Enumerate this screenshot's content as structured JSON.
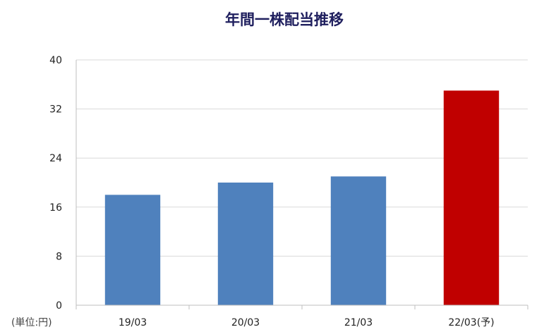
{
  "chart_data": {
    "type": "bar",
    "title": "年間一株配当推移",
    "categories": [
      "19/03",
      "20/03",
      "21/03",
      "22/03(予)"
    ],
    "values": [
      18,
      20,
      21,
      35
    ],
    "bar_colors": [
      "#4f81bd",
      "#4f81bd",
      "#4f81bd",
      "#c00000"
    ],
    "ylim": [
      0,
      40
    ],
    "yticks": [
      0,
      8,
      16,
      24,
      32,
      40
    ],
    "unit_label": "(単位:円)",
    "grid": true,
    "legend": "none"
  }
}
